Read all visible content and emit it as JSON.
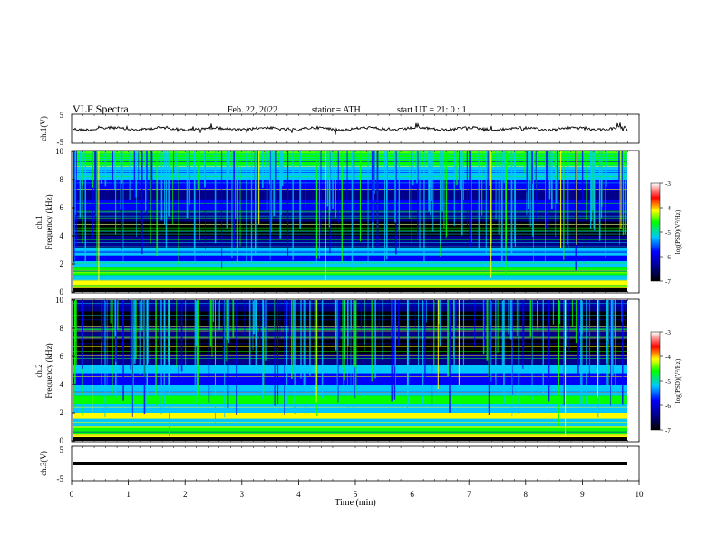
{
  "header": {
    "title": "VLF Spectra",
    "date": "Feb. 22, 2022",
    "station": "station= ATH",
    "start": "start UT =  21: 0 : 1"
  },
  "chart_data": [
    {
      "type": "line",
      "id": "ch1",
      "ylabel": "ch.1(V)",
      "ylim": [
        -5,
        5
      ],
      "yticks": [
        "5",
        "-5"
      ],
      "xlim": [
        0,
        10
      ],
      "baseline": 0,
      "description_values": "noisy waveform around 0 V with small fluctuations, amplitude ~1 V"
    },
    {
      "type": "heatmap",
      "id": "spec1",
      "ylabel": "ch.1\nFrequency (kHz)",
      "ylabel_lines": [
        "ch.1",
        "Frequency (kHz)"
      ],
      "ylim": [
        0,
        10
      ],
      "yticks": [
        "0",
        "2",
        "4",
        "6",
        "8",
        "10"
      ],
      "xlim": [
        0,
        9.8
      ],
      "colorbar": {
        "label": "log(PSD)(V²/Hz)",
        "range": [
          -7,
          -3
        ],
        "ticks": [
          "-3",
          "-4",
          "-5",
          "-6",
          "-7"
        ]
      },
      "colormap": [
        "#000000",
        "#00008b",
        "#0000ff",
        "#00c8ff",
        "#00ff00",
        "#ffff00",
        "#ff0000",
        "#ffffff"
      ]
    },
    {
      "type": "heatmap",
      "id": "spec2",
      "ylabel": "ch.2\nFrequency (kHz)",
      "ylabel_lines": [
        "ch.2",
        "Frequency (kHz)"
      ],
      "ylim": [
        0,
        10
      ],
      "yticks": [
        "0",
        "2",
        "4",
        "6",
        "8",
        "10"
      ],
      "xlim": [
        0,
        9.8
      ],
      "colorbar": {
        "label": "log(PSD)(V²/Hz)",
        "range": [
          -7,
          -3
        ],
        "ticks": [
          "-3",
          "-4",
          "-5",
          "-6",
          "-7"
        ]
      }
    },
    {
      "type": "line",
      "id": "ch3",
      "ylabel": "ch.3(V)",
      "ylim": [
        -5,
        5
      ],
      "yticks": [
        "5",
        "-5"
      ],
      "xlim": [
        0,
        10
      ],
      "baseline": -1.8,
      "description_values": "flat constant trace near -1.8 V"
    }
  ],
  "xaxis": {
    "label": "Time (min)",
    "ticks": [
      "0",
      "1",
      "2",
      "3",
      "4",
      "5",
      "6",
      "7",
      "8",
      "9",
      "10"
    ],
    "xlim": [
      0,
      10
    ]
  }
}
